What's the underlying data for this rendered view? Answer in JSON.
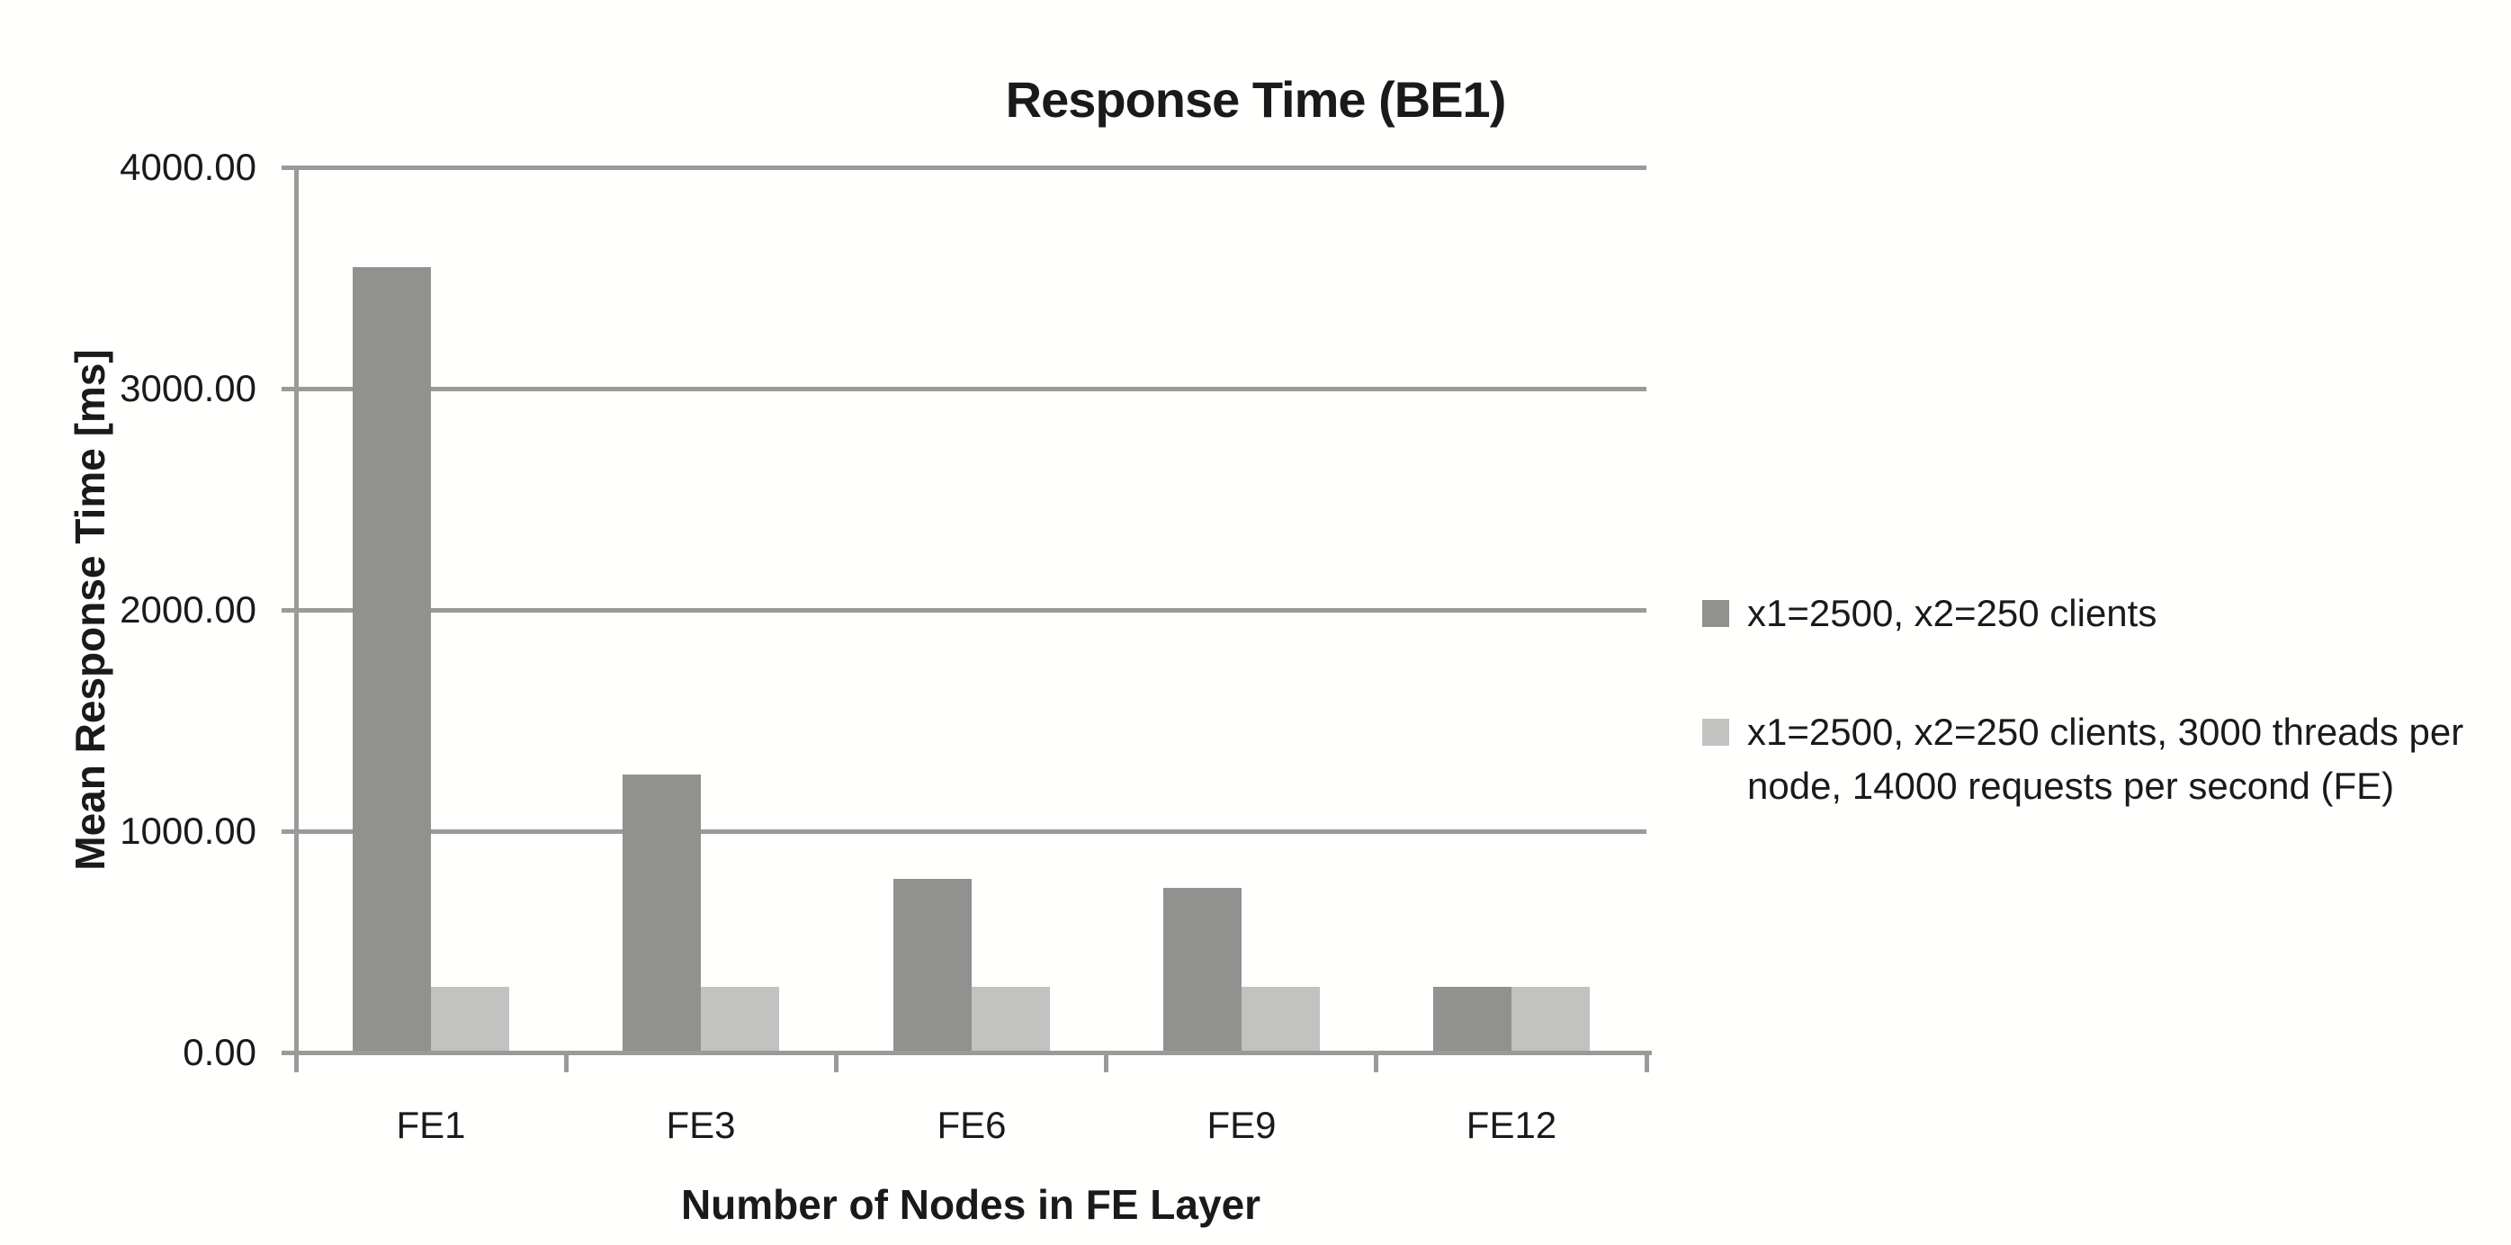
{
  "chart_data": {
    "type": "bar",
    "title": "Response Time (BE1)",
    "xlabel": "Number of Nodes in FE Layer",
    "ylabel": "Mean Response Time [ms]",
    "categories": [
      "FE1",
      "FE3",
      "FE6",
      "FE9",
      "FE12"
    ],
    "series": [
      {
        "name": "x1=2500, x2=250 clients",
        "color": "#919190",
        "values": [
          3550,
          1255,
          785,
          745,
          295
        ]
      },
      {
        "name": "x1=2500, x2=250 clients, 3000 threads per node, 14000 requests per second (FE)",
        "color": "#c2c2c0",
        "values": [
          295,
          295,
          295,
          295,
          295
        ]
      }
    ],
    "ylim": [
      0,
      4000
    ],
    "ytick_step": 1000,
    "ytick_labels": [
      "0.00",
      "1000.00",
      "2000.00",
      "3000.00",
      "4000.00"
    ],
    "grid": true,
    "legend_position": "right",
    "colors": {
      "text": "#1a1a1a",
      "axis": "#9a9a98",
      "gridline": "#9a9a98",
      "background": "#fffffe"
    }
  }
}
